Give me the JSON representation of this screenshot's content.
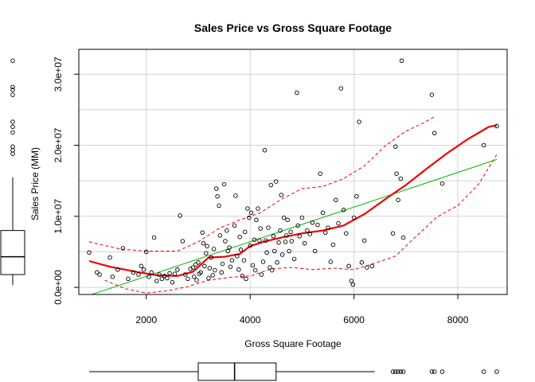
{
  "chart_data": {
    "type": "scatter",
    "title": "Sales Price vs Gross Square Footage",
    "xlabel": "Gross Square Footage",
    "ylabel": "Sales Price (MM)",
    "xlim": [
      700,
      8950
    ],
    "ylim": [
      -1000000,
      33500000
    ],
    "x_ticks": [
      2000,
      4000,
      6000,
      8000
    ],
    "x_tick_labels": [
      "2000",
      "4000",
      "6000",
      "8000"
    ],
    "y_ticks": [
      0,
      10000000,
      20000000,
      30000000
    ],
    "y_tick_labels": [
      "0.0e+00",
      "1.0e+07",
      "2.0e+07",
      "3.0e+07"
    ],
    "grid": true,
    "colors": {
      "points": "#000000",
      "linear_fit": "#00bb00",
      "smooth": "#ee0000",
      "band": "#ee0000",
      "grid": "#d3d3d3"
    },
    "points": [
      [
        900,
        4900000
      ],
      [
        1050,
        2100000
      ],
      [
        1100,
        1800000
      ],
      [
        1300,
        4200000
      ],
      [
        1350,
        1500000
      ],
      [
        1450,
        2500000
      ],
      [
        1550,
        5500000
      ],
      [
        1650,
        1200000
      ],
      [
        1750,
        2100000
      ],
      [
        1850,
        1800000
      ],
      [
        1900,
        3000000
      ],
      [
        1950,
        2500000
      ],
      [
        2000,
        5000000
      ],
      [
        2050,
        1500000
      ],
      [
        2100,
        2100000
      ],
      [
        2150,
        7000000
      ],
      [
        2200,
        900000
      ],
      [
        2250,
        1800000
      ],
      [
        2300,
        1200000
      ],
      [
        2350,
        1600000
      ],
      [
        2400,
        1300000
      ],
      [
        2450,
        2000000
      ],
      [
        2500,
        700000
      ],
      [
        2550,
        1900000
      ],
      [
        2600,
        2500000
      ],
      [
        2650,
        10100000
      ],
      [
        2700,
        6500000
      ],
      [
        2750,
        1800000
      ],
      [
        2800,
        1200000
      ],
      [
        2850,
        2600000
      ],
      [
        2900,
        2800000
      ],
      [
        2920,
        1500000
      ],
      [
        2950,
        3200000
      ],
      [
        2970,
        1000000
      ],
      [
        3000,
        3500000
      ],
      [
        3020,
        1900000
      ],
      [
        3050,
        2100000
      ],
      [
        3080,
        7700000
      ],
      [
        3100,
        6200000
      ],
      [
        3120,
        3000000
      ],
      [
        3150,
        4800000
      ],
      [
        3170,
        5800000
      ],
      [
        3200,
        1300000
      ],
      [
        3220,
        2700000
      ],
      [
        3250,
        4200000
      ],
      [
        3280,
        1700000
      ],
      [
        3300,
        5400000
      ],
      [
        3320,
        2400000
      ],
      [
        3350,
        13900000
      ],
      [
        3370,
        12800000
      ],
      [
        3400,
        11500000
      ],
      [
        3420,
        7300000
      ],
      [
        3450,
        2100000
      ],
      [
        3470,
        3300000
      ],
      [
        3500,
        14500000
      ],
      [
        3520,
        6500000
      ],
      [
        3550,
        8000000
      ],
      [
        3570,
        5100000
      ],
      [
        3600,
        5600000
      ],
      [
        3620,
        2900000
      ],
      [
        3650,
        3800000
      ],
      [
        3700,
        8700000
      ],
      [
        3720,
        12900000
      ],
      [
        3750,
        4400000
      ],
      [
        3780,
        2500000
      ],
      [
        3800,
        7100000
      ],
      [
        3820,
        5300000
      ],
      [
        3850,
        1600000
      ],
      [
        3880,
        3800000
      ],
      [
        3900,
        7800000
      ],
      [
        3920,
        1200000
      ],
      [
        3950,
        11100000
      ],
      [
        3980,
        9800000
      ],
      [
        4000,
        5900000
      ],
      [
        4020,
        10500000
      ],
      [
        4050,
        3100000
      ],
      [
        4080,
        6700000
      ],
      [
        4100,
        2400000
      ],
      [
        4120,
        9500000
      ],
      [
        4150,
        11100000
      ],
      [
        4180,
        6600000
      ],
      [
        4200,
        8300000
      ],
      [
        4220,
        1800000
      ],
      [
        4250,
        3600000
      ],
      [
        4280,
        19300000
      ],
      [
        4300,
        6600000
      ],
      [
        4320,
        4900000
      ],
      [
        4350,
        8400000
      ],
      [
        4380,
        2800000
      ],
      [
        4400,
        14400000
      ],
      [
        4420,
        2400000
      ],
      [
        4450,
        7200000
      ],
      [
        4470,
        5100000
      ],
      [
        4500,
        14900000
      ],
      [
        4520,
        3500000
      ],
      [
        4550,
        6300000
      ],
      [
        4580,
        8000000
      ],
      [
        4600,
        13000000
      ],
      [
        4620,
        4600000
      ],
      [
        4650,
        9800000
      ],
      [
        4680,
        6400000
      ],
      [
        4700,
        7300000
      ],
      [
        4720,
        9500000
      ],
      [
        4750,
        5100000
      ],
      [
        4780,
        7800000
      ],
      [
        4800,
        6500000
      ],
      [
        4850,
        4000000
      ],
      [
        4900,
        27400000
      ],
      [
        4920,
        8700000
      ],
      [
        4950,
        7200000
      ],
      [
        5000,
        9800000
      ],
      [
        5050,
        6200000
      ],
      [
        5100,
        8000000
      ],
      [
        5150,
        7500000
      ],
      [
        5200,
        9100000
      ],
      [
        5250,
        5100000
      ],
      [
        5300,
        8800000
      ],
      [
        5350,
        16000000
      ],
      [
        5400,
        10500000
      ],
      [
        5450,
        7700000
      ],
      [
        5500,
        8400000
      ],
      [
        5550,
        3600000
      ],
      [
        5600,
        6000000
      ],
      [
        5650,
        12300000
      ],
      [
        5700,
        9000000
      ],
      [
        5750,
        28000000
      ],
      [
        5800,
        10900000
      ],
      [
        5850,
        7600000
      ],
      [
        5900,
        3000000
      ],
      [
        5950,
        900000
      ],
      [
        5980,
        400000
      ],
      [
        6000,
        9800000
      ],
      [
        6050,
        12800000
      ],
      [
        6100,
        23300000
      ],
      [
        6150,
        3500000
      ],
      [
        6200,
        6600000
      ],
      [
        6250,
        2800000
      ],
      [
        6350,
        3000000
      ],
      [
        6750,
        7600000
      ],
      [
        6800,
        19800000
      ],
      [
        6820,
        16000000
      ],
      [
        6850,
        12300000
      ],
      [
        6900,
        15300000
      ],
      [
        6920,
        31900000
      ],
      [
        6950,
        7000000
      ],
      [
        7500,
        27100000
      ],
      [
        7550,
        21700000
      ],
      [
        7700,
        14600000
      ],
      [
        8500,
        20000000
      ],
      [
        8750,
        22700000
      ]
    ],
    "linear_fit": [
      [
        950,
        -1000000
      ],
      [
        8750,
        18000000
      ]
    ],
    "smooth": [
      [
        900,
        3700000
      ],
      [
        1300,
        2900000
      ],
      [
        1800,
        2200000
      ],
      [
        2200,
        1700000
      ],
      [
        2600,
        1600000
      ],
      [
        2900,
        2200000
      ],
      [
        3200,
        4200000
      ],
      [
        3500,
        4300000
      ],
      [
        3800,
        4700000
      ],
      [
        4000,
        5800000
      ],
      [
        4300,
        6500000
      ],
      [
        4600,
        7000000
      ],
      [
        5000,
        7600000
      ],
      [
        5400,
        8000000
      ],
      [
        5800,
        8700000
      ],
      [
        6200,
        10300000
      ],
      [
        6600,
        12400000
      ],
      [
        7000,
        14400000
      ],
      [
        7400,
        16700000
      ],
      [
        7800,
        18900000
      ],
      [
        8200,
        20900000
      ],
      [
        8600,
        22600000
      ],
      [
        8750,
        22800000
      ]
    ],
    "upper_band": [
      [
        900,
        6400000
      ],
      [
        1500,
        5400000
      ],
      [
        2000,
        5100000
      ],
      [
        2600,
        5100000
      ],
      [
        3000,
        6400000
      ],
      [
        3400,
        8300000
      ],
      [
        3800,
        9500000
      ],
      [
        4200,
        10500000
      ],
      [
        4600,
        12400000
      ],
      [
        5000,
        13900000
      ],
      [
        5400,
        14200000
      ],
      [
        5800,
        15300000
      ],
      [
        6200,
        17100000
      ],
      [
        6600,
        19900000
      ],
      [
        7000,
        22000000
      ],
      [
        7300,
        23000000
      ],
      [
        7550,
        24000000
      ]
    ],
    "lower_band": [
      [
        1200,
        1000000
      ],
      [
        1600,
        -200000
      ],
      [
        2000,
        -800000
      ],
      [
        2400,
        -500000
      ],
      [
        2800,
        100000
      ],
      [
        3200,
        1000000
      ],
      [
        3600,
        1400000
      ],
      [
        4000,
        1600000
      ],
      [
        4400,
        2600000
      ],
      [
        4800,
        2800000
      ],
      [
        5200,
        2500000
      ],
      [
        5600,
        2700000
      ],
      [
        6000,
        2500000
      ],
      [
        6400,
        3400000
      ],
      [
        6800,
        4400000
      ],
      [
        7200,
        7200000
      ],
      [
        7600,
        9900000
      ],
      [
        8000,
        11500000
      ],
      [
        8400,
        14500000
      ],
      [
        8750,
        18700000
      ]
    ],
    "x_boxplot": {
      "min": 900,
      "q1": 3000,
      "median": 3700,
      "q3": 4500,
      "max": 6400,
      "outliers": [
        6750,
        6800,
        6850,
        6900,
        6950,
        7500,
        7550,
        7700,
        8500,
        8750
      ]
    },
    "y_boxplot": {
      "min": 300000,
      "q1": 1800000,
      "median": 4300000,
      "q3": 8000000,
      "max": 15500000,
      "outliers": [
        18800000,
        19300000,
        19800000,
        21800000,
        22600000,
        23300000,
        27100000,
        27800000,
        28200000,
        31900000
      ]
    }
  }
}
